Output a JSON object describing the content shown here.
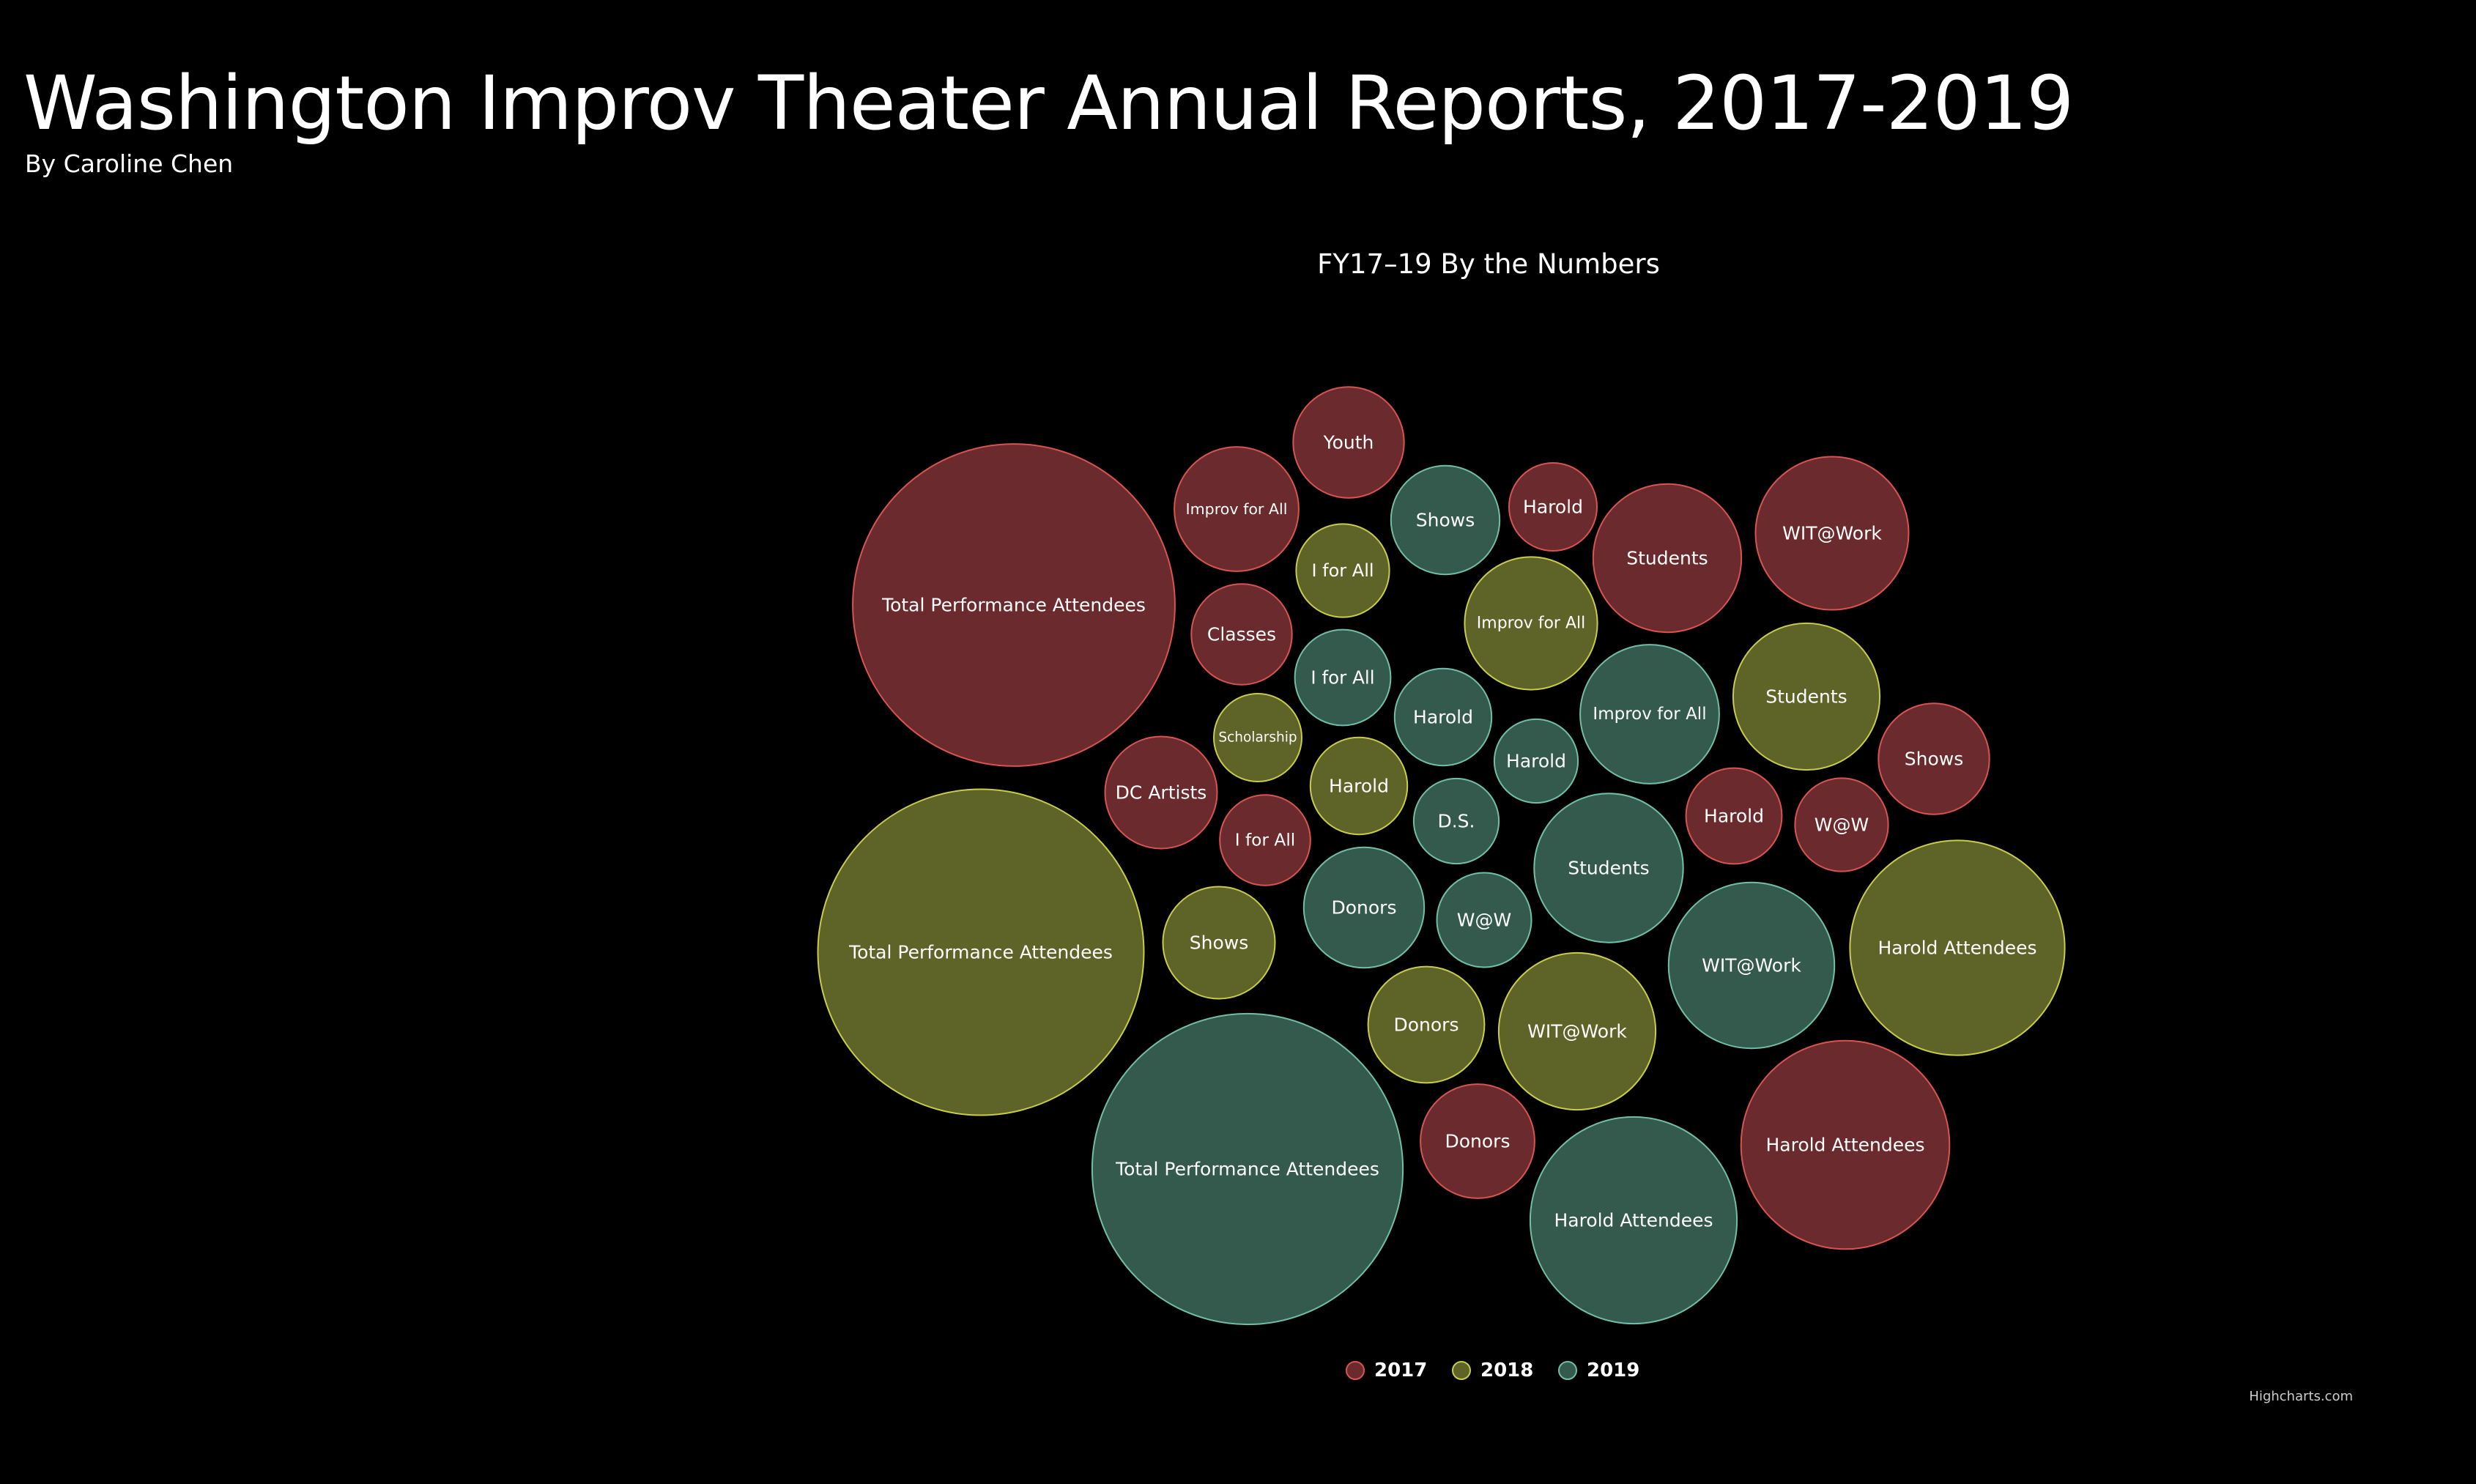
{
  "page": {
    "title": "Washington Improv Theater Annual Reports, 2017-2019",
    "byline": "By Caroline Chen"
  },
  "chart_data": {
    "type": "packedbubble",
    "title": "FY17–19 By the Numbers",
    "credits": "Highcharts.com",
    "legend_placement": "bottom-center",
    "series": [
      {
        "name": "2017",
        "color": "#6b2a2d",
        "stroke": "#d9534f",
        "points": [
          {
            "label": "Total Performance Attendees",
            "value": 21500
          },
          {
            "label": "Harold Attendees",
            "value": 9000
          },
          {
            "label": "WIT@Work",
            "value": 4850
          },
          {
            "label": "Students",
            "value": 4550
          },
          {
            "label": "Improv for All",
            "value": 3200
          },
          {
            "label": "Youth",
            "value": 2550
          },
          {
            "label": "DC Artists",
            "value": 2600
          },
          {
            "label": "Shows",
            "value": 2550
          },
          {
            "label": "Classes",
            "value": 2100
          },
          {
            "label": "Donors",
            "value": 2700
          },
          {
            "label": "Harold",
            "value": 1900
          },
          {
            "label": "Harold",
            "value": 1600
          },
          {
            "label": "I for All",
            "value": 1700
          },
          {
            "label": "W@W",
            "value": 1800
          }
        ]
      },
      {
        "name": "2018",
        "color": "#5e6428",
        "stroke": "#c8cc4a",
        "points": [
          {
            "label": "Total Performance Attendees",
            "value": 22000
          },
          {
            "label": "Harold Attendees",
            "value": 9550
          },
          {
            "label": "WIT@Work",
            "value": 5100
          },
          {
            "label": "Students",
            "value": 4450
          },
          {
            "label": "Improv for All",
            "value": 3650
          },
          {
            "label": "Donors",
            "value": 2800
          },
          {
            "label": "Shows",
            "value": 2600
          },
          {
            "label": "Harold",
            "value": 1950
          },
          {
            "label": "I for All",
            "value": 1800
          },
          {
            "label": "Scholarship",
            "value": 1600
          }
        ]
      },
      {
        "name": "2019",
        "color": "#345a4d",
        "stroke": "#6fbfa8",
        "points": [
          {
            "label": "Total Performance Attendees",
            "value": 20000
          },
          {
            "label": "Harold Attendees",
            "value": 8850
          },
          {
            "label": "WIT@Work",
            "value": 5700
          },
          {
            "label": "Students",
            "value": 4600
          },
          {
            "label": "Improv for All",
            "value": 4000
          },
          {
            "label": "Donors",
            "value": 3000
          },
          {
            "label": "Shows",
            "value": 2450
          },
          {
            "label": "Harold",
            "value": 1950
          },
          {
            "label": "I for All",
            "value": 1900
          },
          {
            "label": "W@W",
            "value": 1850
          },
          {
            "label": "D.S.",
            "value": 1500
          },
          {
            "label": "Harold",
            "value": 1450
          }
        ]
      }
    ]
  }
}
